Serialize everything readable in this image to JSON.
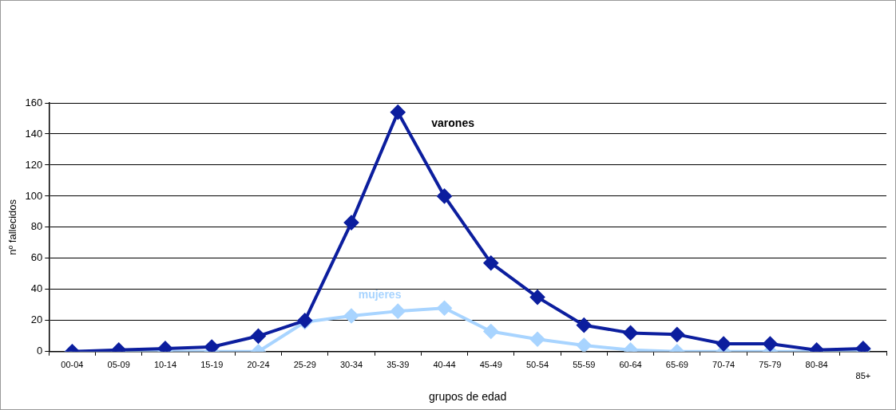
{
  "chart_data": {
    "type": "line",
    "xlabel": "grupos de edad",
    "ylabel": "nº fallecidos",
    "categories": [
      "00-04",
      "05-09",
      "10-14",
      "15-19",
      "20-24",
      "25-29",
      "30-34",
      "35-39",
      "40-44",
      "45-49",
      "50-54",
      "55-59",
      "60-64",
      "65-69",
      "70-74",
      "75-79",
      "80-84",
      "85+"
    ],
    "series": [
      {
        "name": "varones",
        "color": "#0c1e9e",
        "values": [
          0,
          1,
          2,
          3,
          10,
          20,
          83,
          154,
          100,
          57,
          35,
          17,
          12,
          11,
          5,
          5,
          1,
          2
        ]
      },
      {
        "name": "mujeres",
        "color": "#a8d4ff",
        "values": [
          0,
          0,
          0,
          0,
          0,
          19,
          23,
          26,
          28,
          13,
          8,
          4,
          1,
          0,
          0,
          0,
          0,
          1
        ]
      }
    ],
    "ylim": [
      0,
      160
    ],
    "yticks": [
      0,
      20,
      40,
      60,
      80,
      100,
      120,
      140,
      160
    ],
    "grid": "y",
    "legend": false,
    "marker": "diamond",
    "line_style": "solid"
  }
}
